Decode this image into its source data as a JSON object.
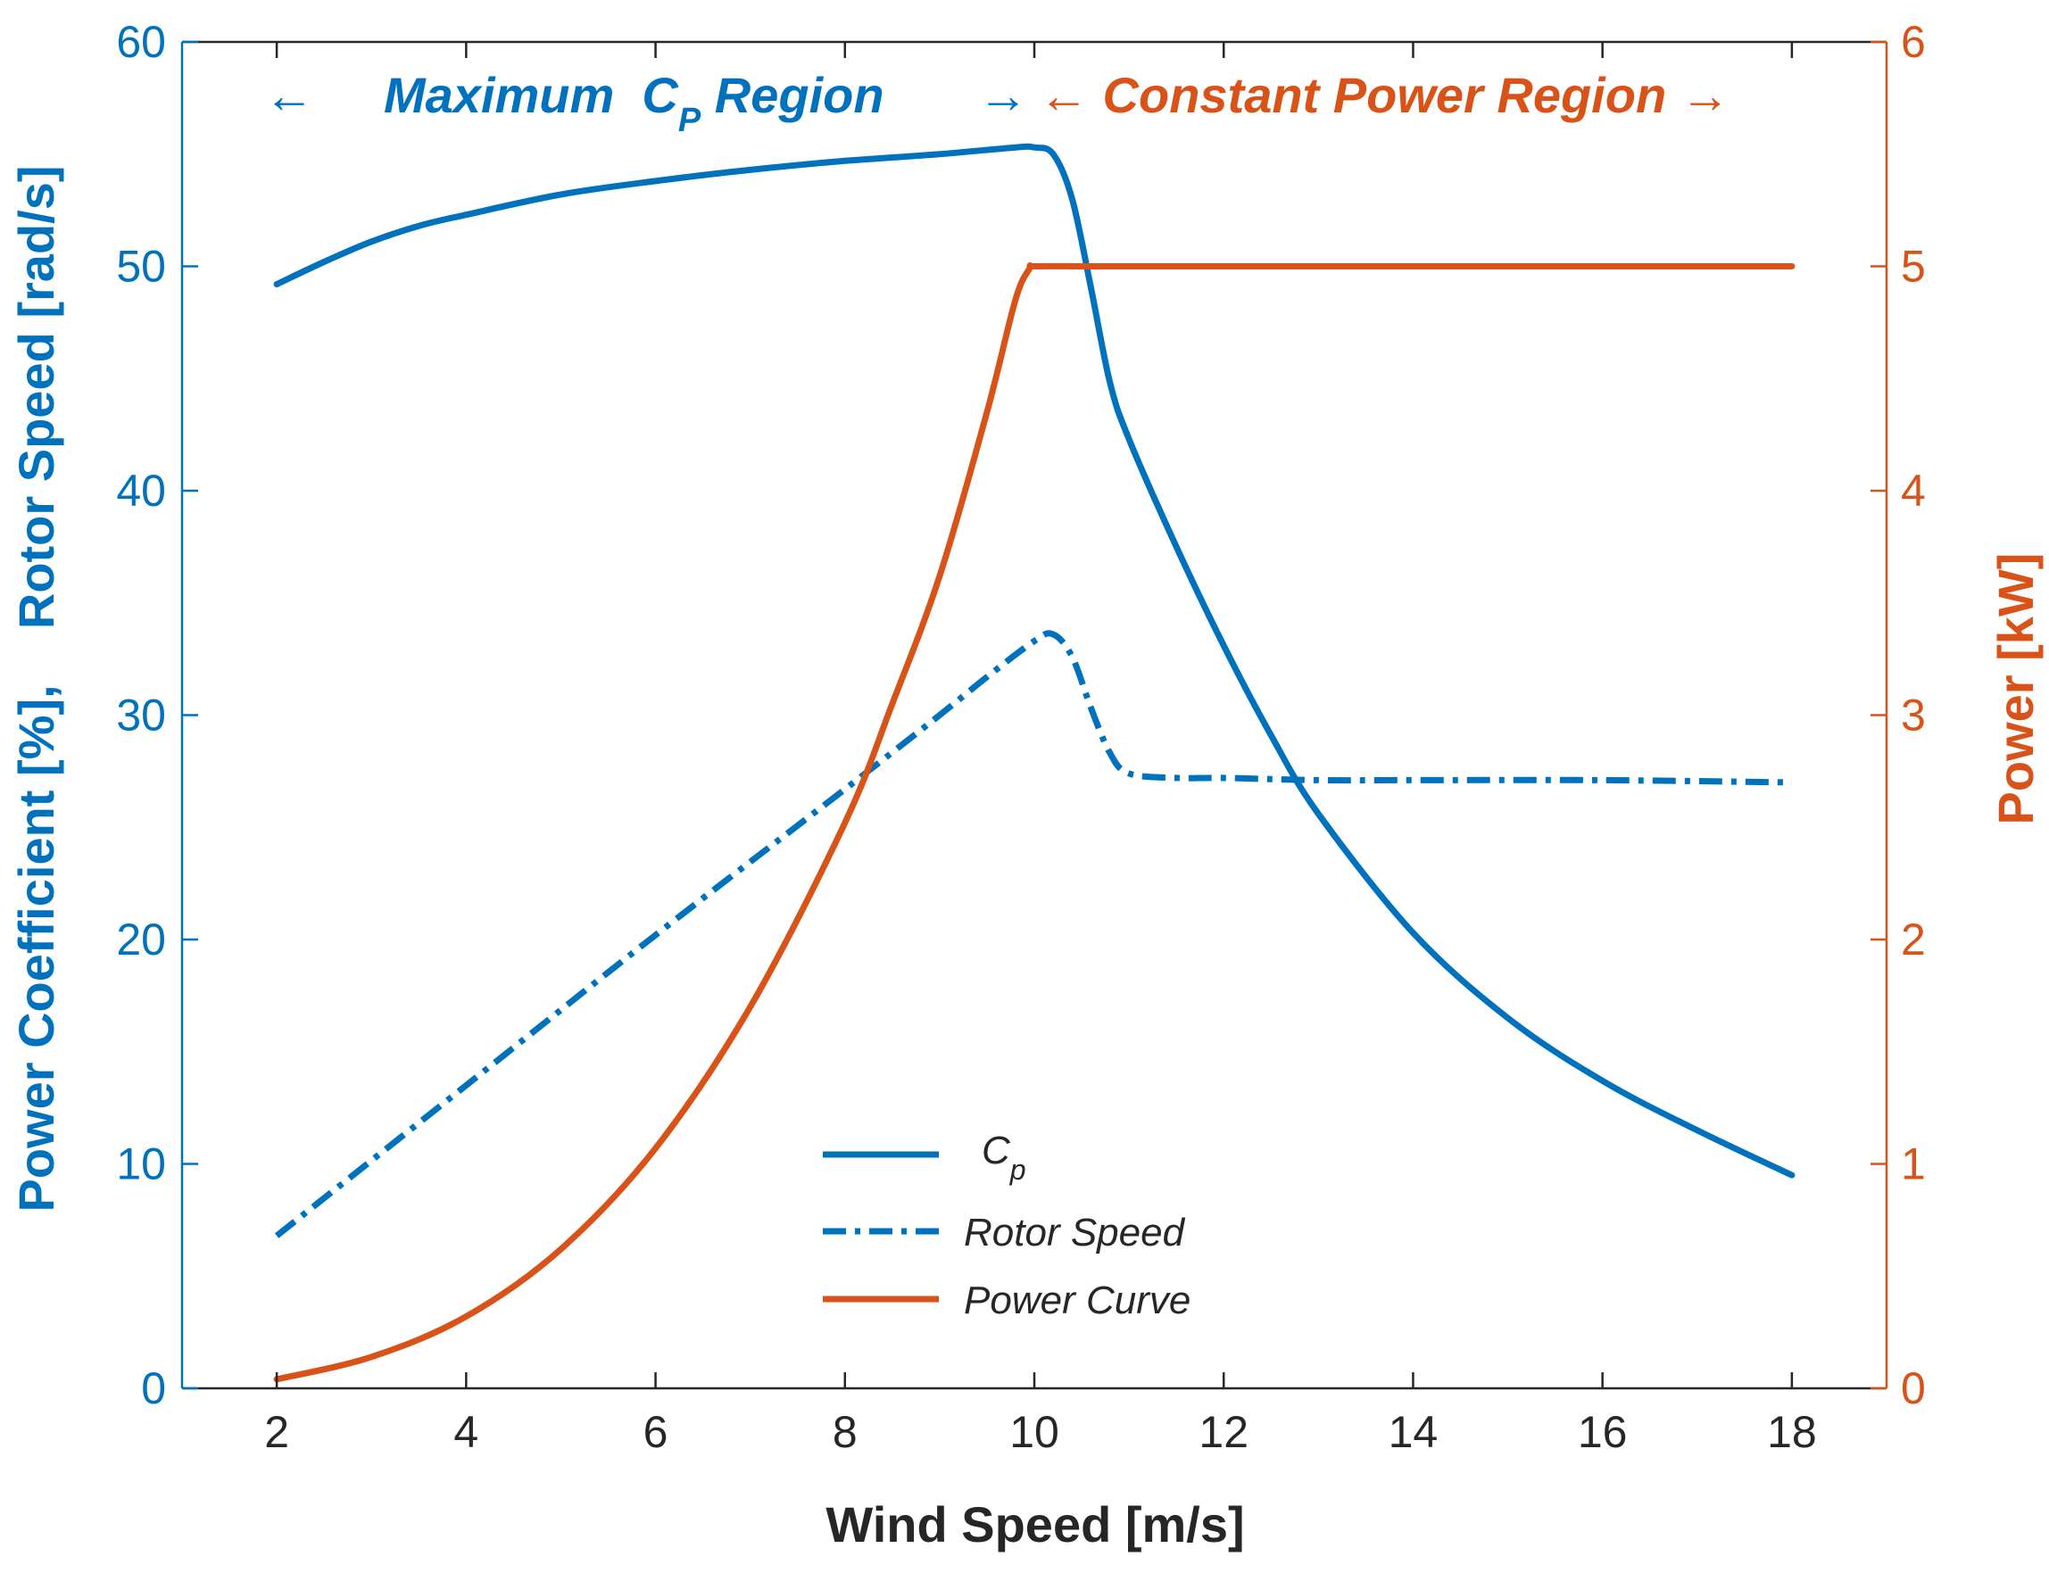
{
  "chart_data": {
    "type": "line",
    "xlabel": "Wind Speed [m/s]",
    "ylabel_left": "Power Coefficient [%],    Rotor Speed [rad/s]",
    "ylabel_right": "Power [kW]",
    "xlim": [
      1,
      19
    ],
    "ylim_left": [
      0,
      60
    ],
    "ylim_right": [
      0,
      6
    ],
    "xticks": [
      2,
      4,
      6,
      8,
      10,
      12,
      14,
      16,
      18
    ],
    "yticks_left": [
      0,
      10,
      20,
      30,
      40,
      50,
      60
    ],
    "yticks_right": [
      0,
      1,
      2,
      3,
      4,
      5,
      6
    ],
    "grid": false,
    "legend_position": "bottom-center",
    "colors": {
      "blue": "#0072BD",
      "orange": "#D95319",
      "axis": "#262626"
    },
    "annotations": [
      {
        "text_left_arrow": "←",
        "text_main": "Maximum  C",
        "text_sub": "P",
        "text_tail": " Region",
        "text_right_arrow": "→",
        "color": "#0072BD"
      },
      {
        "text": "← Constant Power Region →",
        "color": "#D95319"
      }
    ],
    "series": [
      {
        "name": "C",
        "name_sub": "p",
        "axis": "left",
        "color": "#0072BD",
        "style": "solid",
        "x": [
          2,
          2.5,
          3,
          3.5,
          4,
          5,
          6,
          7,
          8,
          9,
          9.8,
          10,
          10.2,
          10.4,
          10.6,
          10.8,
          11,
          11.5,
          12,
          12.5,
          13,
          14,
          15,
          16,
          17,
          18
        ],
        "y": [
          49.2,
          50.2,
          51.1,
          51.8,
          52.3,
          53.2,
          53.8,
          54.3,
          54.7,
          55.0,
          55.3,
          55.3,
          55.0,
          53.0,
          49.0,
          44.8,
          42.3,
          37.5,
          33.1,
          29.1,
          25.6,
          20.3,
          16.5,
          13.7,
          11.5,
          9.5
        ]
      },
      {
        "name": "Rotor Speed",
        "axis": "left",
        "color": "#0072BD",
        "style": "dashdot",
        "x": [
          2,
          4,
          6,
          8,
          9,
          9.5,
          10,
          10.2,
          10.4,
          10.6,
          10.8,
          11,
          11.5,
          12,
          13,
          14,
          16,
          18
        ],
        "y": [
          6.8,
          13.5,
          20.2,
          26.7,
          30.0,
          31.7,
          33.3,
          33.6,
          32.6,
          30.3,
          28.3,
          27.4,
          27.2,
          27.2,
          27.1,
          27.1,
          27.1,
          27.0
        ]
      },
      {
        "name": "Power Curve",
        "axis": "right",
        "color": "#D95319",
        "style": "solid",
        "x": [
          2,
          3,
          4,
          5,
          6,
          7,
          8,
          8.5,
          9,
          9.5,
          9.8,
          9.95,
          10,
          10.5,
          11,
          12,
          14,
          16,
          18
        ],
        "y": [
          0.04,
          0.14,
          0.32,
          0.62,
          1.07,
          1.7,
          2.52,
          3.05,
          3.62,
          4.35,
          4.85,
          4.99,
          5.0,
          5.0,
          5.0,
          5.0,
          5.0,
          5.0,
          5.0
        ]
      }
    ]
  }
}
